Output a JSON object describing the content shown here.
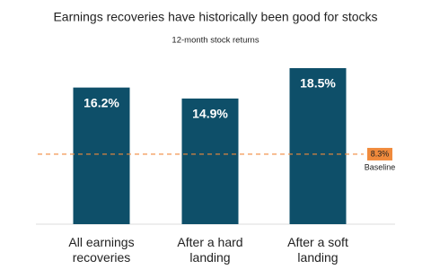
{
  "chart_data": {
    "type": "bar",
    "title": "Earnings recoveries have historically been good for stocks",
    "subtitle": "12-month stock returns",
    "categories": [
      "All earnings recoveries",
      "After a hard landing",
      "After a soft landing"
    ],
    "values": [
      16.2,
      14.9,
      18.5
    ],
    "value_labels": [
      "16.2%",
      "14.9%",
      "18.5%"
    ],
    "color": "#0e4f69",
    "reference_line": {
      "value": 8.3,
      "value_label": "8.3%",
      "label": "Baseline",
      "color": "#f08a3c"
    }
  }
}
